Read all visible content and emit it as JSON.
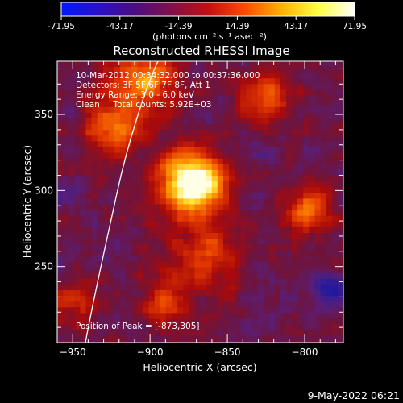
{
  "colorbar": {
    "ticks": [
      "-71.95",
      "-43.17",
      "-14.39",
      "14.39",
      "43.17",
      "71.95"
    ],
    "unit_label": "(photons cm⁻² s⁻¹ asec⁻²)",
    "stops": [
      "#0018ff",
      "#2a10c8",
      "#4a0e80",
      "#80104a",
      "#c01010",
      "#ff4a00",
      "#ffb000",
      "#ffff40",
      "#ffffff"
    ]
  },
  "chart_data": {
    "type": "heatmap",
    "title": "Reconstructed RHESSI Image",
    "xlabel": "Heliocentric X (arcsec)",
    "ylabel": "Heliocentric Y (arcsec)",
    "xlim": [
      -960,
      -775
    ],
    "ylim": [
      200,
      385
    ],
    "x_ticks": [
      -950,
      -900,
      -850,
      -800
    ],
    "y_ticks": [
      250,
      300,
      350
    ],
    "annotations": [
      "10-Mar-2012 00:34:32.000 to 00:37:36.000",
      "Detectors: 3F 5F 6F 7F 8F, Att 1",
      "Energy Range: 3.0 - 6.0 keV",
      "Clean     Total counts: 5.92E+03"
    ],
    "peak_label": "Position of Peak = [-873,305]",
    "peak": [
      -873,
      305
    ]
  },
  "footer": {
    "timestamp": "9-May-2022 06:21"
  }
}
